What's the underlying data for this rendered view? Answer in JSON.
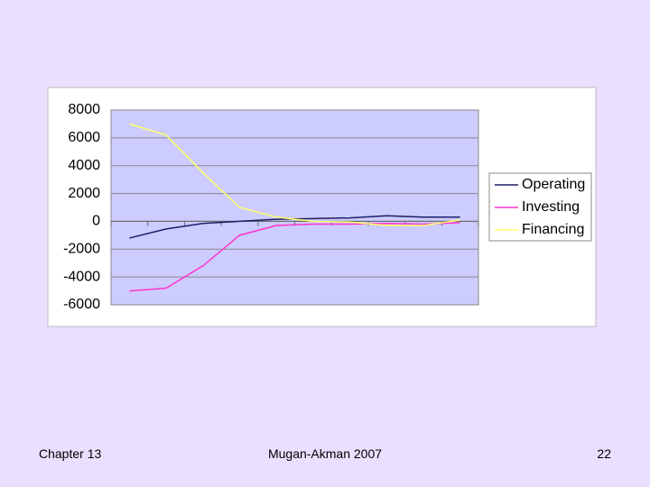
{
  "chart_data": {
    "type": "line",
    "categories": [
      null,
      null,
      null,
      null,
      null,
      null,
      null,
      null,
      null,
      null
    ],
    "series": [
      {
        "name": "Operating",
        "color": "#1c1c66",
        "values": [
          -1200,
          -550,
          -150,
          0,
          150,
          200,
          250,
          400,
          300,
          300
        ]
      },
      {
        "name": "Investing",
        "color": "#ff33cc",
        "values": [
          -5000,
          -4800,
          -3200,
          -1000,
          -300,
          -200,
          -200,
          -150,
          -200,
          -100
        ]
      },
      {
        "name": "Financing",
        "color": "#ffff66",
        "values": [
          7000,
          6200,
          3500,
          1000,
          300,
          0,
          -50,
          -300,
          -300,
          100
        ]
      }
    ],
    "ylim": [
      -6000,
      8000
    ],
    "yticks": [
      -6000,
      -4000,
      -2000,
      0,
      2000,
      4000,
      6000,
      8000
    ],
    "grid": true,
    "legend": "right"
  },
  "footer": {
    "left": "Chapter 13",
    "center": "Mugan-Akman 2007",
    "right": "22"
  }
}
